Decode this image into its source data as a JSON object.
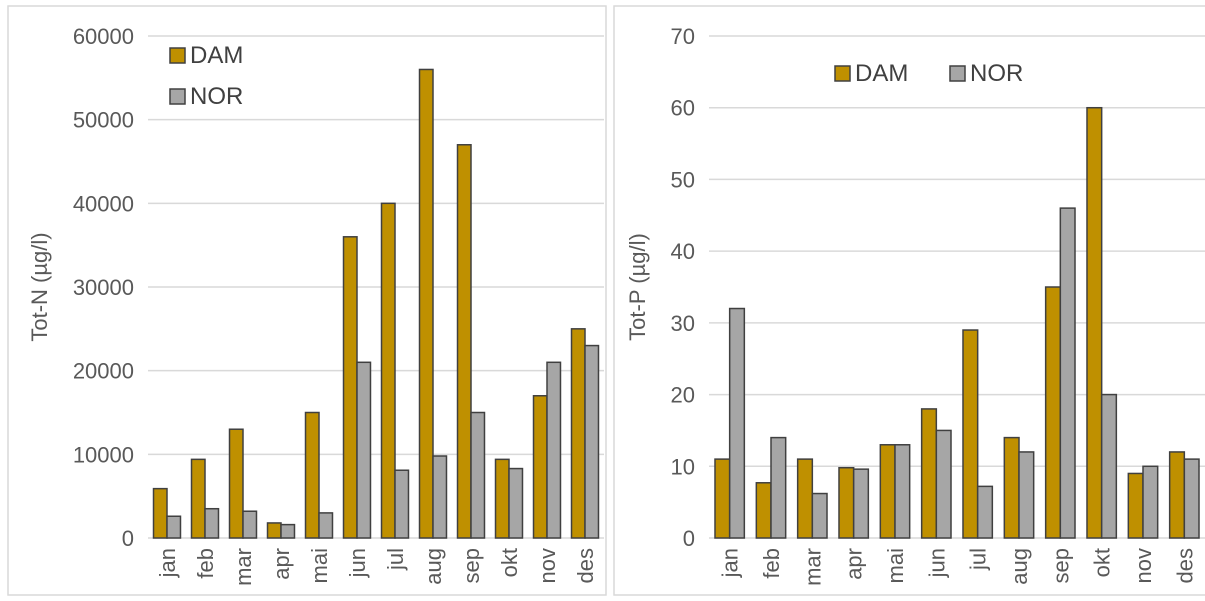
{
  "chart_data": [
    {
      "type": "bar",
      "categories": [
        "jan",
        "feb",
        "mar",
        "apr",
        "mai",
        "jun",
        "jul",
        "aug",
        "sep",
        "okt",
        "nov",
        "des"
      ],
      "series": [
        {
          "name": "DAM",
          "values": [
            5900,
            9400,
            13000,
            1800,
            15000,
            36000,
            40000,
            56000,
            47000,
            9400,
            17000,
            25000
          ]
        },
        {
          "name": "NOR",
          "values": [
            2600,
            3500,
            3200,
            1600,
            3000,
            21000,
            8100,
            9800,
            15000,
            8300,
            21000,
            23000
          ]
        }
      ],
      "title": "",
      "xlabel": "",
      "ylabel": "Tot-N (µg/l)",
      "ylim": [
        0,
        60000
      ],
      "yticks": [
        0,
        10000,
        20000,
        30000,
        40000,
        50000,
        60000
      ],
      "grid": true,
      "legend_position": "top-left, stacked",
      "colors": {
        "DAM": "#bf9000",
        "NOR": "#a6a6a6",
        "bar_outline": "#404040",
        "grid": "#d9d9d9"
      }
    },
    {
      "type": "bar",
      "categories": [
        "jan",
        "feb",
        "mar",
        "apr",
        "mai",
        "jun",
        "jul",
        "aug",
        "sep",
        "okt",
        "nov",
        "des"
      ],
      "series": [
        {
          "name": "DAM",
          "values": [
            11,
            7.7,
            11,
            9.8,
            13,
            18,
            29,
            14,
            35,
            60,
            9,
            12
          ]
        },
        {
          "name": "NOR",
          "values": [
            32,
            14,
            6.2,
            9.6,
            13,
            15,
            7.2,
            12,
            46,
            20,
            10,
            11
          ]
        }
      ],
      "title": "",
      "xlabel": "",
      "ylabel": "Tot-P (µg/l)",
      "ylim": [
        0,
        70
      ],
      "yticks": [
        0,
        10,
        20,
        30,
        40,
        50,
        60,
        70
      ],
      "grid": true,
      "legend_position": "top-center, horizontal",
      "colors": {
        "DAM": "#bf9000",
        "NOR": "#a6a6a6",
        "bar_outline": "#404040",
        "grid": "#d9d9d9"
      }
    }
  ]
}
